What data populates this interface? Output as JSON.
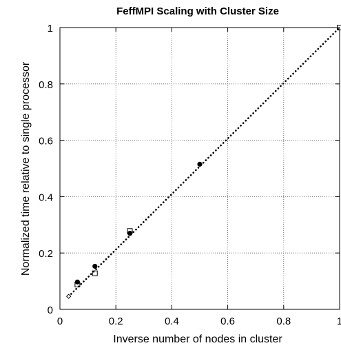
{
  "chart_data": {
    "type": "scatter",
    "title": "FeffMPI Scaling with Cluster Size",
    "xlabel": "Inverse number of nodes in cluster",
    "ylabel": "Normalized time relative to single processor",
    "xlim": [
      0,
      1
    ],
    "ylim": [
      0,
      1
    ],
    "xticks": [
      0,
      0.2,
      0.4,
      0.6,
      0.8,
      1
    ],
    "yticks": [
      0,
      0.2,
      0.4,
      0.6,
      0.8,
      1
    ],
    "xtick_labels": [
      "0",
      "0.2",
      "0.4",
      "0.6",
      "0.8",
      "1"
    ],
    "ytick_labels": [
      "0",
      "0.2",
      "0.4",
      "0.6",
      "0.8",
      "1"
    ],
    "grid": true,
    "series": [
      {
        "marker": "filled-circle",
        "x": [
          0.0625,
          0.125,
          0.25,
          0.5
        ],
        "y": [
          0.097,
          0.153,
          0.27,
          0.515
        ]
      },
      {
        "marker": "open-square",
        "x": [
          0.0625,
          0.125,
          0.25,
          1.0
        ],
        "y": [
          0.088,
          0.128,
          0.278,
          1.0
        ]
      },
      {
        "type": "line",
        "style": "dotted",
        "x": [
          0.03125,
          1.0
        ],
        "y": [
          0.046,
          1.0
        ]
      }
    ],
    "colors": {
      "marks": "#000000",
      "grid": "#555555"
    }
  }
}
